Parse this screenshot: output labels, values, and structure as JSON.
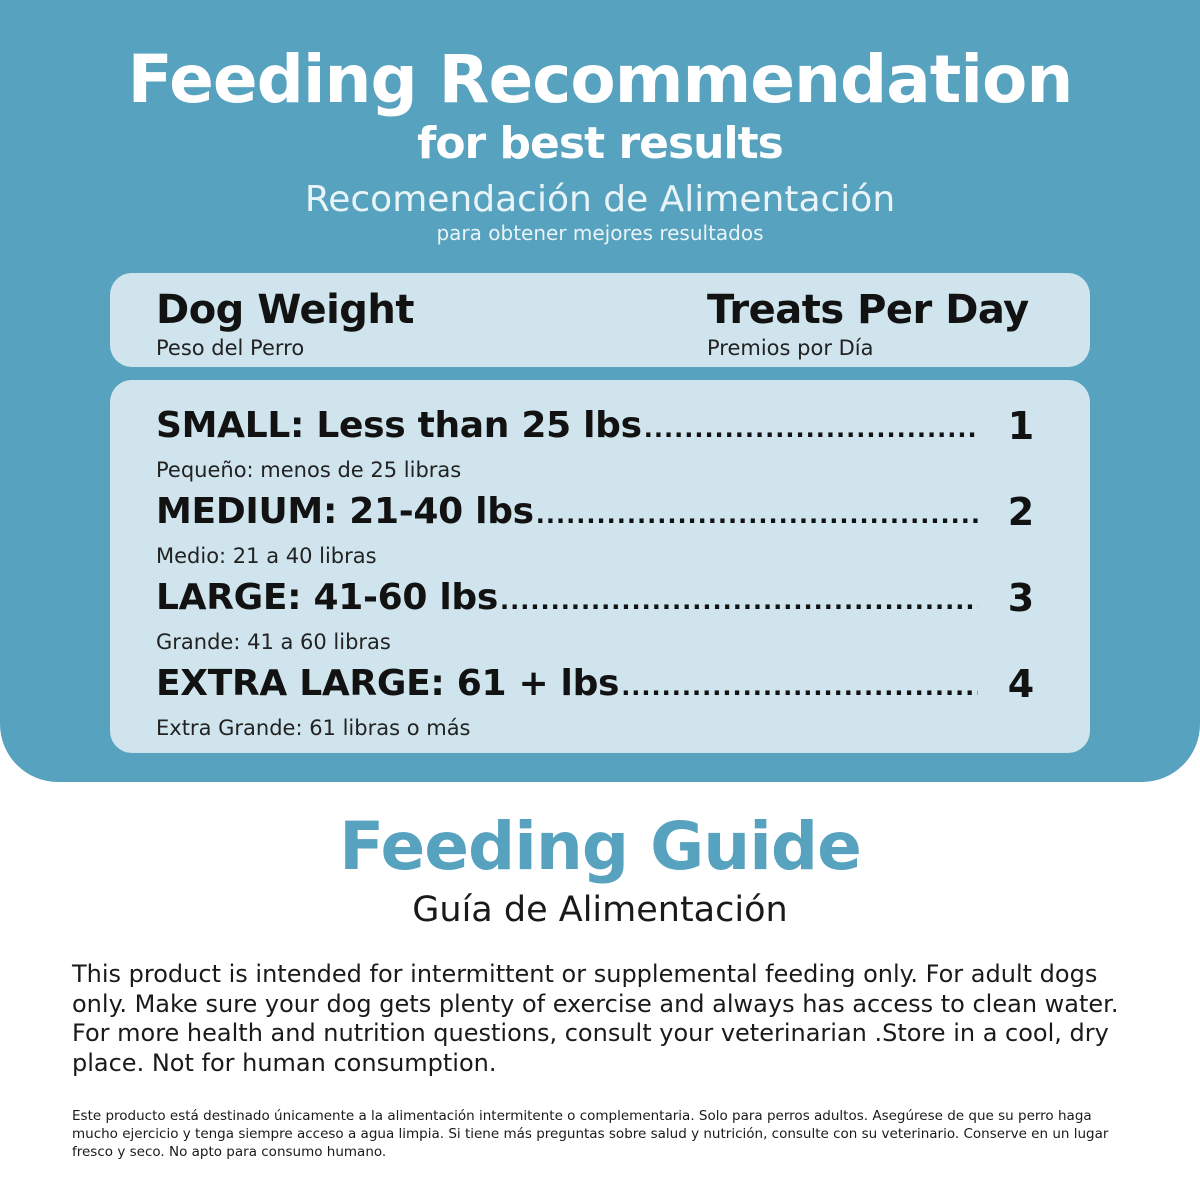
{
  "header": {
    "title": "Feeding Recommendation",
    "subtitle": "for best results",
    "title_es": "Recomendación de Alimentación",
    "subtitle_es": "para obtener mejores resultados"
  },
  "table": {
    "col_weight": "Dog Weight",
    "col_weight_es": "Peso del Perro",
    "col_treats": "Treats Per Day",
    "col_treats_es": "Premios por Día",
    "rows": [
      {
        "label": "SMALL: Less than 25 lbs",
        "label_es": "Pequeño: menos de 25 libras",
        "count": "1"
      },
      {
        "label": "MEDIUM: 21-40 lbs",
        "label_es": "Medio: 21 a 40 libras",
        "count": "2"
      },
      {
        "label": "LARGE: 41-60 lbs",
        "label_es": "Grande: 41 a 60 libras",
        "count": "3"
      },
      {
        "label": "EXTRA LARGE: 61 + lbs",
        "label_es": "Extra Grande: 61 libras o más",
        "count": "4"
      }
    ]
  },
  "guide": {
    "title": "Feeding Guide",
    "title_es": "Guía de Alimentación",
    "text_en": "This product is intended for intermittent or supplemental feeding only. For adult dogs only. Make sure your dog gets plenty of exercise and always has access to clean water. For more health and nutrition questions, consult your veterinarian .Store in a cool, dry place. Not for human consumption.",
    "text_es": "Este producto está destinado únicamente a la alimentación intermitente o complementaria. Solo para perros adultos. Asegúrese de que su perro haga mucho ejercicio y tenga siempre acceso a agua limpia. Si tiene más preguntas sobre salud y nutrición, consulte con su veterinario. Conserve en un lugar fresco y seco. No apto para consumo humano."
  },
  "colors": {
    "panel": "#57a2be",
    "card": "#cfe4ec",
    "accent_text": "#57a2be"
  }
}
